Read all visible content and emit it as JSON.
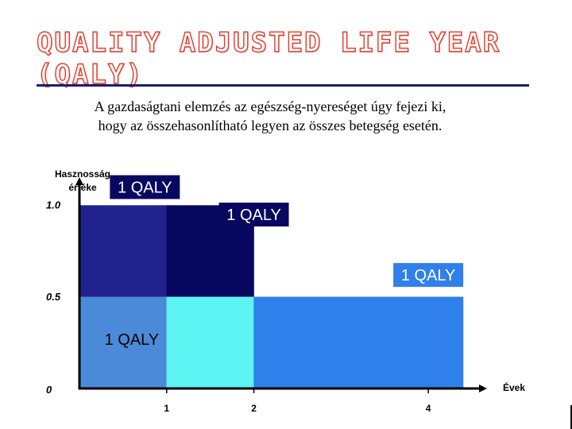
{
  "slide": {
    "title_line1": "QUALITY ADJUSTED LIFE YEAR",
    "title_line2": "(QALY)",
    "subtitle_line1": "A gazdaságtani elemzés az egészség-nyereséget úgy fejezi ki,",
    "subtitle_line2": "hogy az összehasonlítható legyen az összes betegség esetén."
  },
  "chart_data": {
    "type": "area",
    "title": "",
    "ylabel_line1": "Hasznosság",
    "ylabel_line2": "értéke",
    "xlabel": "Évek",
    "xlim": [
      0,
      4.5
    ],
    "ylim": [
      0,
      1.15
    ],
    "x_ticks": [
      1,
      2,
      4
    ],
    "x_tick_labels": [
      "1",
      "2",
      "4"
    ],
    "y_ticks": [
      0,
      0.5,
      1.0
    ],
    "y_tick_labels": [
      "0",
      "0.5",
      "1.0"
    ],
    "regions": [
      {
        "name": "full-health-year-1",
        "x": [
          0,
          1
        ],
        "y": [
          0.5,
          1.0
        ],
        "color": "#22228e"
      },
      {
        "name": "full-health-year-2",
        "x": [
          1,
          2
        ],
        "y": [
          0.5,
          1.0
        ],
        "color": "#080860"
      },
      {
        "name": "half-health-year-1",
        "x": [
          0,
          1
        ],
        "y": [
          0,
          0.5
        ],
        "color": "#4a8ad8"
      },
      {
        "name": "half-health-year-2",
        "x": [
          1,
          2
        ],
        "y": [
          0,
          0.5
        ],
        "color": "#5ef4f4"
      },
      {
        "name": "half-health-years-3-4",
        "x": [
          2,
          4.4
        ],
        "y": [
          0,
          0.5
        ],
        "color": "#2f80ea"
      }
    ],
    "annotations": [
      {
        "label": "1 QALY",
        "x": 0.75,
        "y": 1.1,
        "bg": "#080860",
        "fg": "#ffffff"
      },
      {
        "label": "1 QALY",
        "x": 2.0,
        "y": 0.95,
        "bg": "#080860",
        "fg": "#ffffff"
      },
      {
        "label": "1 QALY",
        "x": 4.0,
        "y": 0.62,
        "bg": "#2f80ea",
        "fg": "#ffffff"
      },
      {
        "label": "1 QALY",
        "x": 0.6,
        "y": 0.27,
        "bg": "none",
        "fg": "#000000"
      }
    ]
  }
}
